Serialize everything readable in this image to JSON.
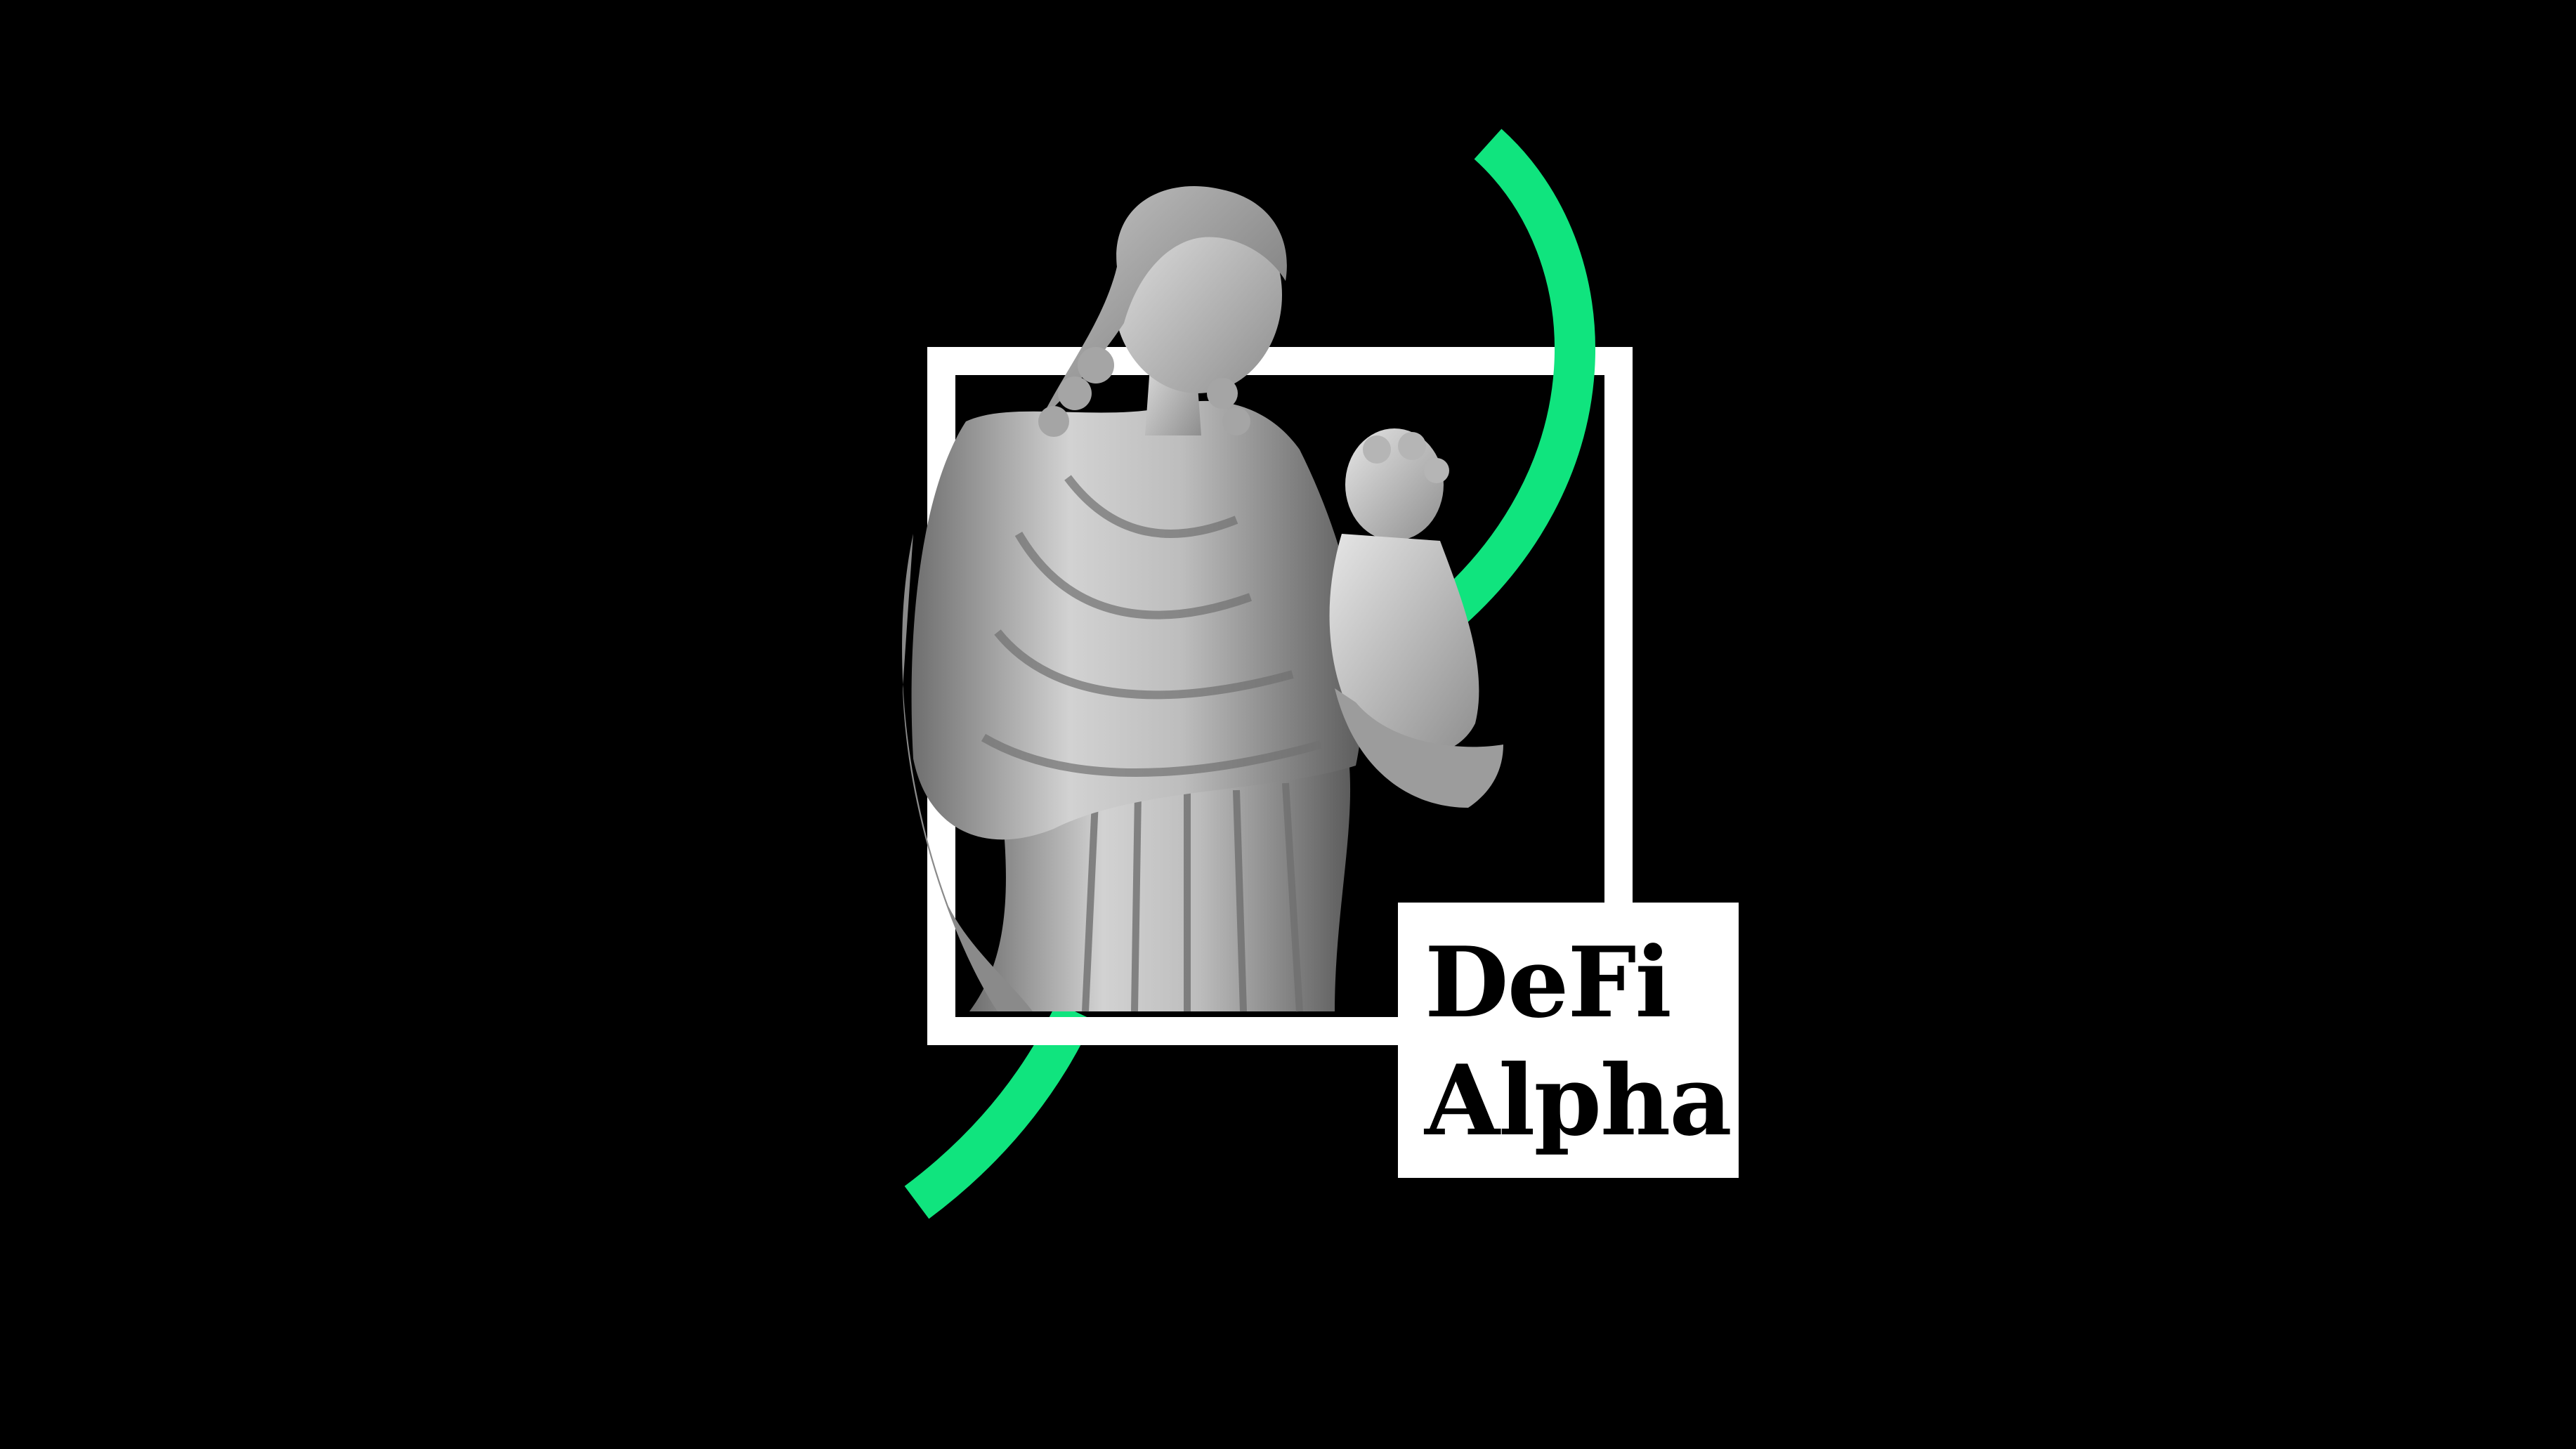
{
  "title_card": {
    "line1": "DeFi",
    "line2": "Alpha"
  },
  "artwork": {
    "subject": "statue-icon",
    "frame": "square-frame-icon",
    "arc": "arc-icon"
  },
  "colors": {
    "background": "#000000",
    "accent": "#10e47e",
    "frame": "#ffffff",
    "label_bg": "#ffffff",
    "label_text": "#000000",
    "statue_light": "#d9d9d9",
    "statue_mid": "#9a9a9a",
    "statue_dark": "#4a4a4a"
  }
}
